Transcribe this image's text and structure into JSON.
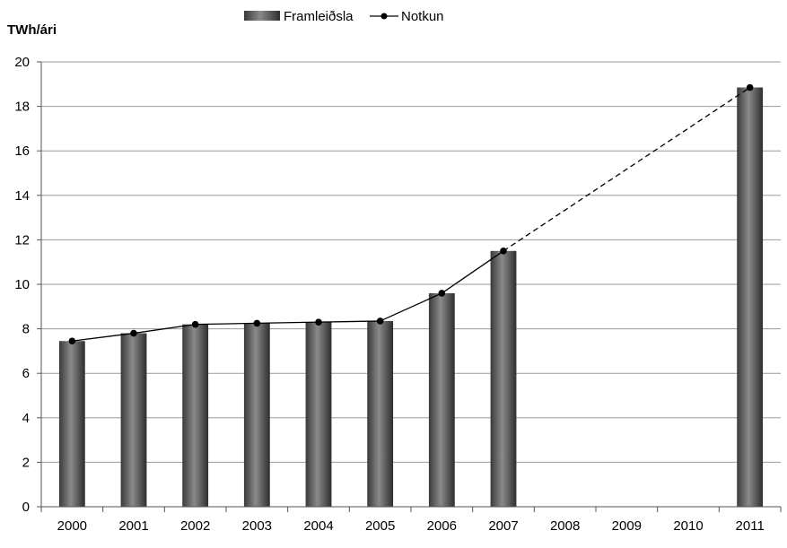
{
  "chart_data": {
    "type": "bar",
    "title": "",
    "xlabel": "",
    "ylabel": "TWh/ári",
    "ylim": [
      0,
      20
    ],
    "yticks": [
      "0",
      "2",
      "4",
      "6",
      "8",
      "10",
      "12",
      "14",
      "16",
      "18",
      "20"
    ],
    "categories": [
      "2000",
      "2001",
      "2002",
      "2003",
      "2004",
      "2005",
      "2006",
      "2007",
      "2008",
      "2009",
      "2010",
      "2011"
    ],
    "grid": true,
    "legend_position": "top-center",
    "series": [
      {
        "name": "Framleiðsla",
        "type": "bar",
        "color": "#555555",
        "values": [
          7.45,
          7.8,
          8.2,
          8.25,
          8.3,
          8.35,
          9.6,
          11.5,
          null,
          null,
          null,
          18.85
        ]
      },
      {
        "name": "Notkun",
        "type": "line",
        "color": "#000000",
        "values": [
          7.45,
          7.8,
          8.2,
          8.25,
          8.3,
          8.35,
          9.6,
          11.5,
          null,
          null,
          null,
          18.85
        ],
        "dashed_segment_between": [
          "2007",
          "2011"
        ]
      }
    ]
  }
}
